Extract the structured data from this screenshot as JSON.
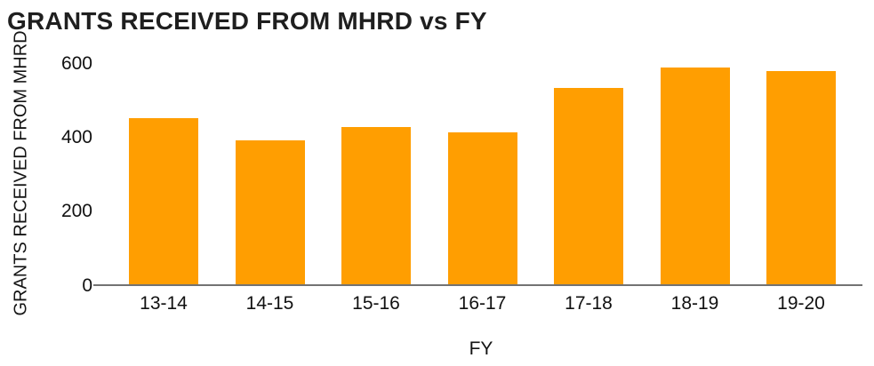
{
  "chart": {
    "title": "GRANTS RECEIVED FROM MHRD vs FY",
    "x_axis_title": "FY",
    "y_axis_title": "GRANTS RECEIVED FROM MHRD"
  },
  "chart_data": {
    "type": "bar",
    "title": "GRANTS RECEIVED FROM MHRD vs FY",
    "categories": [
      "13-14",
      "14-15",
      "15-16",
      "16-17",
      "17-18",
      "18-19",
      "19-20"
    ],
    "values": [
      450,
      390,
      425,
      410,
      530,
      585,
      575
    ],
    "xlabel": "FY",
    "ylabel": "GRANTS RECEIVED FROM MHRD",
    "ylim": [
      0,
      600
    ],
    "yticks": [
      0,
      200,
      400,
      600
    ],
    "bar_color": "#FF9E01",
    "axis_line_color": "#737373",
    "background_color": "#FFFFFF",
    "grid": false,
    "legend": "none"
  }
}
